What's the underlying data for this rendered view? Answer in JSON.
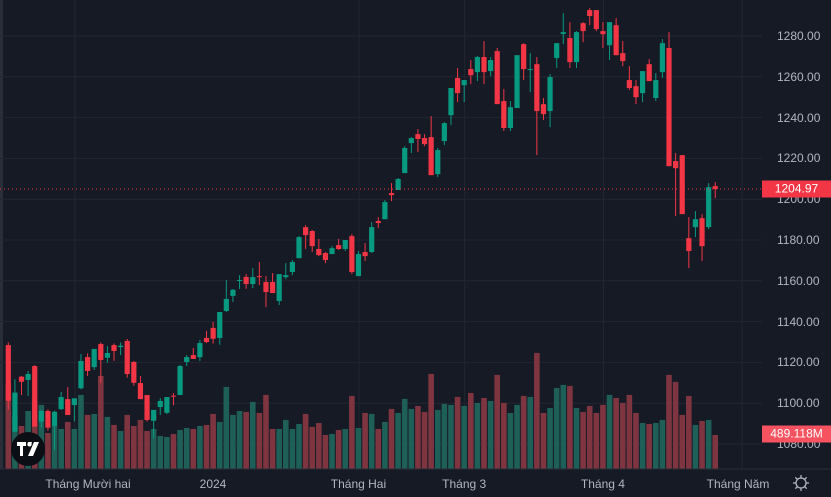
{
  "chart_data": {
    "type": "candlestick",
    "title": "",
    "colors": {
      "up": "#089981",
      "down": "#f23645",
      "vol_up": "#1e5f57",
      "vol_down": "#7f3540",
      "background": "#161a25",
      "grid": "#232632"
    },
    "y_ticks": [
      "1280.00",
      "1260.00",
      "1240.00",
      "1220.00",
      "1200.00",
      "1180.00",
      "1160.00",
      "1140.00",
      "1120.00",
      "1100.00",
      "1080.00"
    ],
    "y_tick_values": [
      1280,
      1260,
      1240,
      1220,
      1200,
      1180,
      1160,
      1140,
      1120,
      1100,
      1080
    ],
    "ylim": [
      1072,
      1296
    ],
    "x_ticks": [
      {
        "label": "Tháng Mười hai",
        "index": 11
      },
      {
        "label": "2024",
        "index": 32
      },
      {
        "label": "Tháng Hai",
        "index": 54
      },
      {
        "label": "Tháng 3",
        "index": 70
      },
      {
        "label": "Tháng 4",
        "index": 91
      },
      {
        "label": "Tháng Năm",
        "index": 112
      }
    ],
    "last_price": "1204.97",
    "last_volume": "489.118M",
    "volume_unit": "M",
    "ohlcv": [
      [
        1128.5,
        1129.8,
        1096.7,
        1101.2,
        1210
      ],
      [
        1086,
        1111.7,
        1086,
        1105.2,
        763
      ],
      [
        1113,
        1113.3,
        1104,
        1110.5,
        619
      ],
      [
        1111.4,
        1115.8,
        1103.5,
        1114.3,
        835
      ],
      [
        1118.2,
        1118.7,
        1088.5,
        1088.5,
        979
      ],
      [
        1091,
        1096.5,
        1088,
        1096.2,
        922
      ],
      [
        1096.2,
        1097,
        1086.5,
        1088,
        518
      ],
      [
        1088.8,
        1096.3,
        1077,
        1095.8,
        619
      ],
      [
        1097.1,
        1105.5,
        1096.7,
        1103,
        576
      ],
      [
        1102,
        1107.9,
        1094.2,
        1094.2,
        677
      ],
      [
        1099.1,
        1102.4,
        1091,
        1102.4,
        576
      ],
      [
        1107.3,
        1124.1,
        1106.8,
        1120.7,
        1066
      ],
      [
        1122.6,
        1124.4,
        1113.3,
        1115.8,
        778
      ],
      [
        1117.7,
        1126.6,
        1116.3,
        1126.6,
        792
      ],
      [
        1129,
        1129.8,
        1110,
        1121.2,
        1339
      ],
      [
        1122.3,
        1128,
        1119.8,
        1124.6,
        749
      ],
      [
        1128.5,
        1129.3,
        1120.7,
        1125.6,
        634
      ],
      [
        1127.5,
        1129.8,
        1123.6,
        1128.2,
        547
      ],
      [
        1130.5,
        1131.5,
        1112.5,
        1114.3,
        778
      ],
      [
        1120.2,
        1120.7,
        1108.6,
        1110,
        619
      ],
      [
        1109.9,
        1113.3,
        1102,
        1102,
        706
      ],
      [
        1104,
        1104,
        1091,
        1091.8,
        547
      ],
      [
        1091.4,
        1096.7,
        1083,
        1096.7,
        576
      ],
      [
        1098.1,
        1102.5,
        1094.2,
        1101.1,
        475
      ],
      [
        1095.3,
        1103,
        1094.7,
        1103,
        461
      ],
      [
        1103.7,
        1105,
        1099,
        1103.3,
        504
      ],
      [
        1104,
        1118.7,
        1104,
        1118.2,
        562
      ],
      [
        1120.2,
        1123.6,
        1118.2,
        1122.6,
        590
      ],
      [
        1123.6,
        1127,
        1121.7,
        1121.7,
        576
      ],
      [
        1122.6,
        1131,
        1120.7,
        1129.5,
        619
      ],
      [
        1132,
        1135.4,
        1129.5,
        1130,
        634
      ],
      [
        1136.9,
        1139.8,
        1129.2,
        1131.6,
        792
      ],
      [
        1132,
        1144.7,
        1128.7,
        1144.7,
        677
      ],
      [
        1145.2,
        1160.4,
        1144.7,
        1151.1,
        1181
      ],
      [
        1152.6,
        1156,
        1149.6,
        1155.6,
        778
      ],
      [
        1159.9,
        1162.8,
        1156,
        1160.4,
        835
      ],
      [
        1161.9,
        1163.3,
        1156,
        1158.4,
        821
      ],
      [
        1158.4,
        1166.2,
        1156.4,
        1161.8,
        965
      ],
      [
        1162.3,
        1169.2,
        1157.9,
        1161.8,
        806
      ],
      [
        1159.4,
        1162.3,
        1147.1,
        1154.5,
        1066
      ],
      [
        1159.4,
        1163.8,
        1154,
        1154,
        576
      ],
      [
        1150.1,
        1163.3,
        1148.1,
        1163.3,
        576
      ],
      [
        1161.8,
        1168.7,
        1160.8,
        1162.8,
        706
      ],
      [
        1164.3,
        1170.2,
        1162.8,
        1169.2,
        576
      ],
      [
        1171.1,
        1181.9,
        1171.1,
        1181.4,
        648
      ],
      [
        1186.3,
        1187.3,
        1175.6,
        1182.4,
        792
      ],
      [
        1184.4,
        1184.9,
        1174.1,
        1177,
        605
      ],
      [
        1175.6,
        1180.5,
        1172.1,
        1172.6,
        662
      ],
      [
        1173.6,
        1174.1,
        1168.7,
        1170.2,
        490
      ],
      [
        1173.1,
        1177,
        1173.1,
        1176,
        504
      ],
      [
        1177.5,
        1180.5,
        1175.1,
        1175.6,
        562
      ],
      [
        1175.6,
        1180,
        1174.6,
        1180,
        576
      ],
      [
        1181.9,
        1182.9,
        1163.3,
        1164.3,
        1051
      ],
      [
        1162.3,
        1174.6,
        1162.3,
        1173.1,
        590
      ],
      [
        1174.1,
        1178.5,
        1169.7,
        1172.1,
        806
      ],
      [
        1174.1,
        1188.8,
        1173.6,
        1186.3,
        792
      ],
      [
        1189.3,
        1191.2,
        1185.8,
        1188.3,
        576
      ],
      [
        1190.2,
        1199.6,
        1190.2,
        1198.6,
        677
      ],
      [
        1203,
        1207.9,
        1199.1,
        1202,
        864
      ],
      [
        1204.5,
        1210.4,
        1204.5,
        1209.9,
        806
      ],
      [
        1212.8,
        1226,
        1212.8,
        1225.1,
        1008
      ],
      [
        1227.5,
        1230.4,
        1222.6,
        1229.96,
        864
      ],
      [
        1231.9,
        1234.4,
        1223.1,
        1229.5,
        907
      ],
      [
        1230,
        1231.9,
        1226,
        1227,
        821
      ],
      [
        1230.4,
        1240.7,
        1211.8,
        1211.8,
        1368
      ],
      [
        1212.3,
        1225.1,
        1210.8,
        1224.1,
        850
      ],
      [
        1228.5,
        1237.8,
        1226.5,
        1237.3,
        936
      ],
      [
        1241.2,
        1254.5,
        1236.3,
        1254.5,
        922
      ],
      [
        1259.4,
        1264.3,
        1247.6,
        1252,
        1037
      ],
      [
        1255.9,
        1258.4,
        1247.6,
        1258.4,
        907
      ],
      [
        1263.8,
        1268.2,
        1256.4,
        1260.8,
        1094
      ],
      [
        1262.3,
        1270.2,
        1257.9,
        1269.7,
        950
      ],
      [
        1269.7,
        1277.5,
        1256.4,
        1262.3,
        1022
      ],
      [
        1262.8,
        1269.7,
        1260.3,
        1268.2,
        979
      ],
      [
        1272.6,
        1274.1,
        1246.6,
        1246.6,
        1354
      ],
      [
        1248.1,
        1254,
        1233.4,
        1234.9,
        950
      ],
      [
        1234.9,
        1248.1,
        1233.4,
        1245.1,
        806
      ],
      [
        1244.7,
        1270.6,
        1244.7,
        1270.6,
        922
      ],
      [
        1276,
        1276.5,
        1258.4,
        1263.8,
        1051
      ],
      [
        1263.3,
        1271.6,
        1252.5,
        1263.8,
        1037
      ],
      [
        1266.2,
        1269.7,
        1221.6,
        1243.2,
        1670
      ],
      [
        1246.6,
        1249.6,
        1238.8,
        1241.7,
        806
      ],
      [
        1243.2,
        1261.3,
        1235.3,
        1259.9,
        878
      ],
      [
        1269.2,
        1276.5,
        1264.3,
        1276.5,
        1166
      ],
      [
        1281,
        1291.2,
        1276,
        1281.9,
        1210
      ],
      [
        1279,
        1286.8,
        1264.3,
        1267.2,
        1195
      ],
      [
        1267.2,
        1282.4,
        1264.3,
        1281.9,
        878
      ],
      [
        1286.3,
        1286.8,
        1277,
        1282.4,
        821
      ],
      [
        1292.7,
        1293.7,
        1285.3,
        1289.8,
        907
      ],
      [
        1292.7,
        1292.7,
        1282.4,
        1283.4,
        806
      ],
      [
        1282.4,
        1286.8,
        1274.1,
        1280.9,
        922
      ],
      [
        1275.5,
        1286.8,
        1268.2,
        1286.8,
        1066
      ],
      [
        1285.3,
        1288.8,
        1270.6,
        1270.6,
        1022
      ],
      [
        1271.6,
        1277.5,
        1265.2,
        1267.7,
        950
      ],
      [
        1258.4,
        1265.2,
        1253.5,
        1254.5,
        1066
      ],
      [
        1255.4,
        1258.4,
        1246.6,
        1250,
        806
      ],
      [
        1252,
        1262.8,
        1247.6,
        1262.8,
        662
      ],
      [
        1266.2,
        1268.7,
        1257.9,
        1257.9,
        648
      ],
      [
        1249.6,
        1261.8,
        1248.1,
        1258.4,
        662
      ],
      [
        1262.3,
        1278.5,
        1259.4,
        1276.5,
        706
      ],
      [
        1274.1,
        1281.9,
        1216.2,
        1216.2,
        1354
      ],
      [
        1218.7,
        1222.6,
        1191.7,
        1215.2,
        1253
      ],
      [
        1221.6,
        1221.6,
        1192.7,
        1192.7,
        778
      ],
      [
        1180.9,
        1191.2,
        1166.2,
        1174.6,
        1051
      ],
      [
        1186.3,
        1194.2,
        1181.4,
        1190.2,
        634
      ],
      [
        1190.7,
        1192.7,
        1169.7,
        1177,
        691
      ],
      [
        1186.3,
        1207.9,
        1185.3,
        1205.9,
        706
      ],
      [
        1206.4,
        1208.4,
        1200.5,
        1204.97,
        489.118
      ]
    ]
  }
}
